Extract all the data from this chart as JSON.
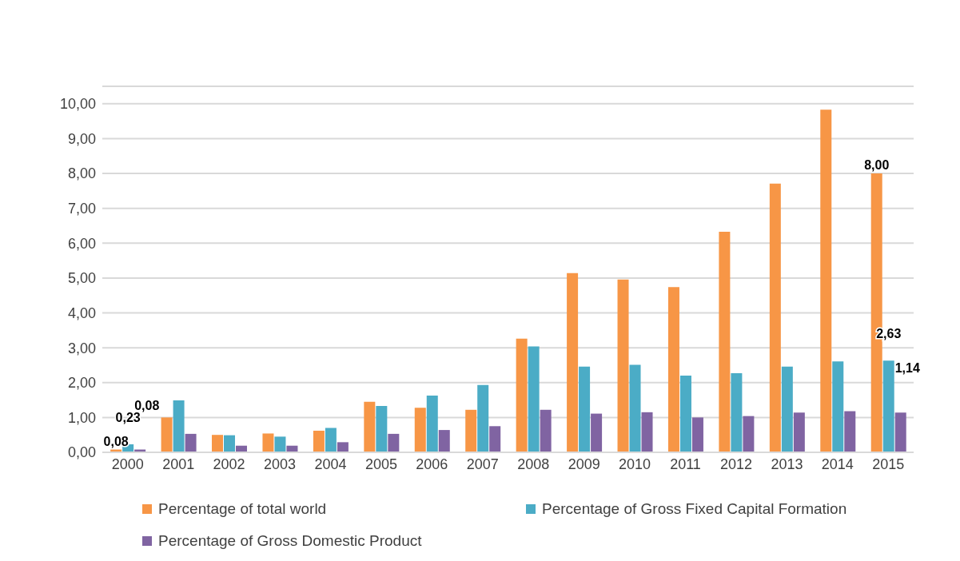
{
  "chart_data": {
    "type": "bar",
    "categories": [
      "2000",
      "2001",
      "2002",
      "2003",
      "2004",
      "2005",
      "2006",
      "2007",
      "2008",
      "2009",
      "2010",
      "2011",
      "2012",
      "2013",
      "2014",
      "2015"
    ],
    "series": [
      {
        "name": "Percentage of total world",
        "color": "#f79646",
        "values": [
          0.08,
          1.0,
          0.5,
          0.54,
          0.62,
          1.45,
          1.28,
          1.22,
          3.26,
          5.14,
          4.96,
          4.74,
          6.33,
          7.71,
          9.83,
          8.0
        ],
        "value_labels": [
          "0,08",
          null,
          null,
          null,
          null,
          null,
          null,
          null,
          null,
          null,
          null,
          null,
          null,
          null,
          null,
          "8,00"
        ]
      },
      {
        "name": "Percentage of Gross Fixed Capital Formation",
        "color": "#4bacc6",
        "values": [
          0.23,
          1.49,
          0.49,
          0.45,
          0.7,
          1.33,
          1.63,
          1.93,
          3.04,
          2.46,
          2.51,
          2.2,
          2.27,
          2.46,
          2.61,
          2.63
        ],
        "value_labels": [
          "0,23",
          null,
          null,
          null,
          null,
          null,
          null,
          null,
          null,
          null,
          null,
          null,
          null,
          null,
          null,
          "2,63"
        ]
      },
      {
        "name": "Percentage of Gross Domestic Product",
        "color": "#8064a2",
        "values": [
          0.08,
          0.53,
          0.19,
          0.19,
          0.29,
          0.53,
          0.64,
          0.75,
          1.22,
          1.11,
          1.15,
          1.0,
          1.04,
          1.14,
          1.18,
          1.14
        ],
        "value_labels": [
          "0,08",
          null,
          null,
          null,
          null,
          null,
          null,
          null,
          null,
          null,
          null,
          null,
          null,
          null,
          null,
          "1,14"
        ]
      }
    ],
    "ylim": [
      0,
      10.5
    ],
    "yticks": [
      {
        "value": 0,
        "label": "0,00"
      },
      {
        "value": 1,
        "label": "1,00"
      },
      {
        "value": 2,
        "label": "2,00"
      },
      {
        "value": 3,
        "label": "3,00"
      },
      {
        "value": 4,
        "label": "4,00"
      },
      {
        "value": 5,
        "label": "5,00"
      },
      {
        "value": 6,
        "label": "6,00"
      },
      {
        "value": 7,
        "label": "7,00"
      },
      {
        "value": 8,
        "label": "8,00"
      },
      {
        "value": 9,
        "label": "9,00"
      },
      {
        "value": 10,
        "label": "10,00"
      }
    ],
    "grid": "y",
    "legend": "bottom"
  }
}
